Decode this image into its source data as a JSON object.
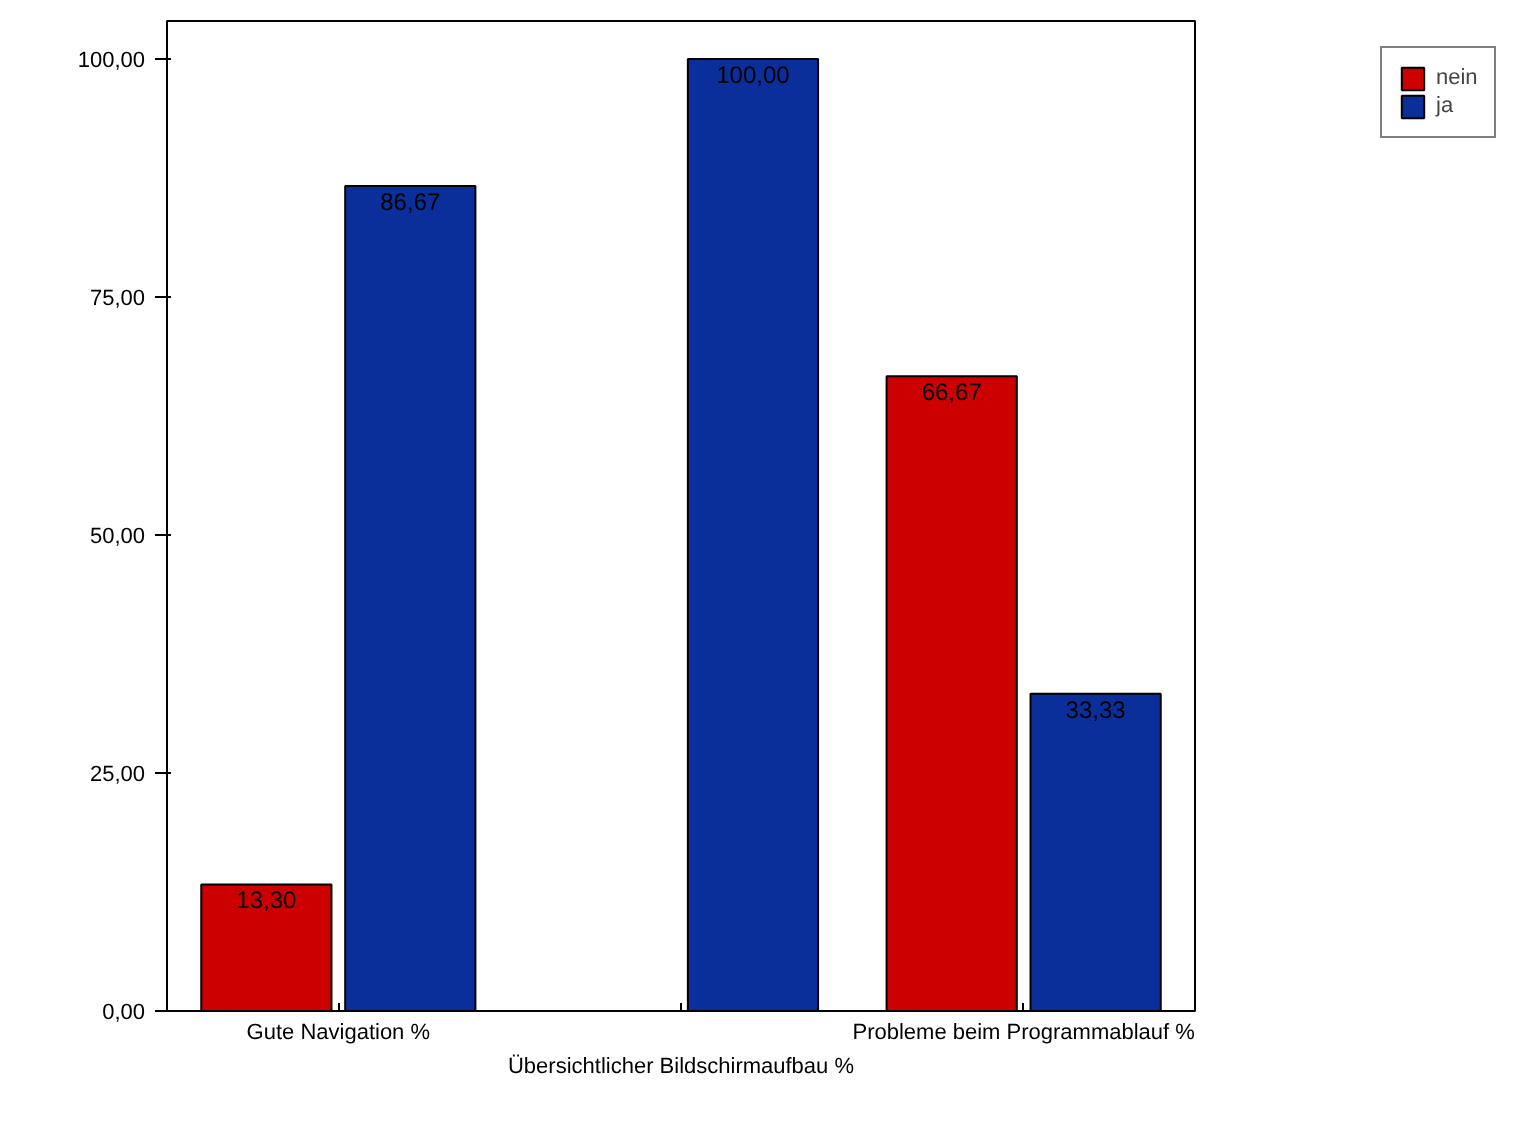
{
  "chart_data": {
    "type": "bar",
    "categories": [
      "Gute Navigation %",
      "Übersichtlicher Bildschirmaufbau %",
      "Probleme beim Programmablauf %"
    ],
    "series": [
      {
        "name": "nein",
        "color": "#cc0000",
        "values": [
          13.3,
          null,
          66.67
        ],
        "value_labels": [
          "13,30",
          null,
          "66,67"
        ]
      },
      {
        "name": "ja",
        "color": "#0a2f9a",
        "values": [
          86.67,
          100.0,
          33.33
        ],
        "value_labels": [
          "86,67",
          "100,00",
          "33,33"
        ]
      }
    ],
    "ylim": [
      0,
      104
    ],
    "yticks": [
      {
        "value": 0,
        "label": "0,00"
      },
      {
        "value": 25,
        "label": "25,00"
      },
      {
        "value": 50,
        "label": "50,00"
      },
      {
        "value": 75,
        "label": "75,00"
      },
      {
        "value": 100,
        "label": "100,00"
      }
    ],
    "grid": false,
    "legend": "top right"
  }
}
